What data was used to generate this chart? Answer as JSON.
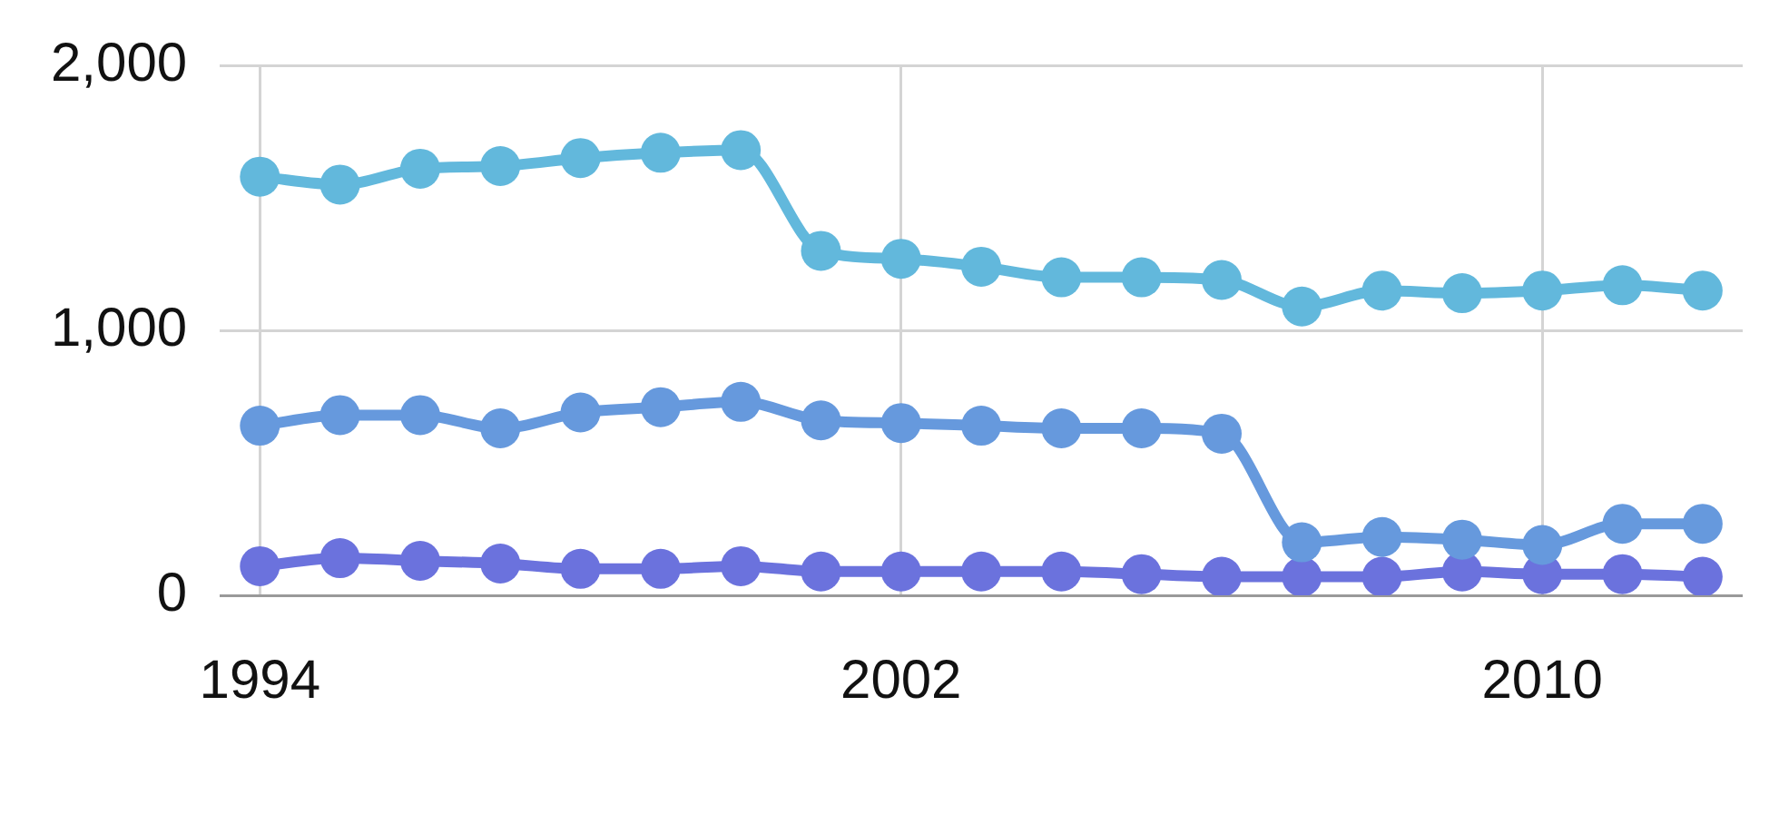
{
  "chart_data": {
    "type": "line",
    "x": [
      1994,
      1995,
      1996,
      1997,
      1998,
      1999,
      2000,
      2001,
      2002,
      2003,
      2004,
      2005,
      2006,
      2007,
      2008,
      2009,
      2010,
      2011,
      2012
    ],
    "series": [
      {
        "color": "#62b8dc",
        "values": [
          1580,
          1550,
          1610,
          1620,
          1650,
          1670,
          1680,
          1300,
          1270,
          1240,
          1200,
          1200,
          1190,
          1090,
          1150,
          1140,
          1150,
          1170,
          1150
        ]
      },
      {
        "color": "#6699dd",
        "values": [
          640,
          680,
          680,
          630,
          690,
          710,
          730,
          660,
          650,
          640,
          630,
          630,
          610,
          200,
          220,
          210,
          190,
          270,
          270
        ]
      },
      {
        "color": "#6b72dd",
        "values": [
          110,
          140,
          130,
          120,
          100,
          100,
          110,
          90,
          90,
          90,
          90,
          80,
          70,
          70,
          70,
          90,
          80,
          80,
          70
        ]
      }
    ],
    "xlim": [
      1993.5,
      2012.5
    ],
    "xticks": [
      1994,
      2002,
      2010
    ],
    "ylim": [
      0,
      2000
    ],
    "yticks": [
      {
        "value": 0,
        "label": "0"
      },
      {
        "value": 1000,
        "label": "1,000"
      },
      {
        "value": 2000,
        "label": "2,000"
      }
    ],
    "grid": true,
    "legend": false,
    "marker": "circle",
    "line_style": "solid"
  }
}
